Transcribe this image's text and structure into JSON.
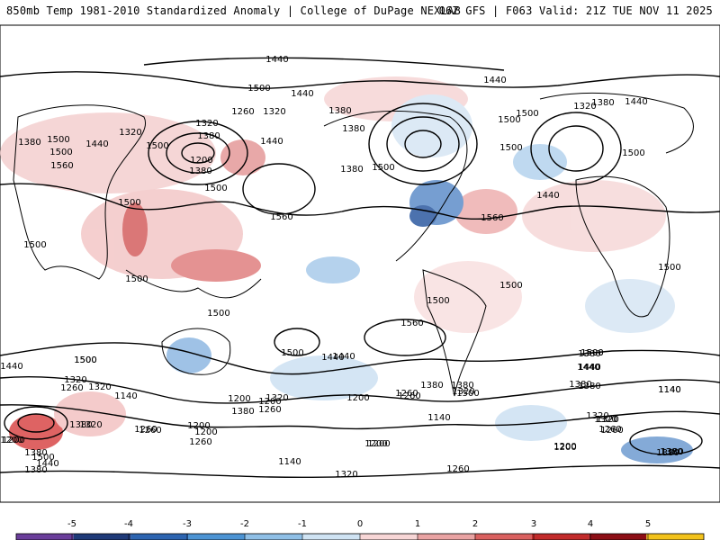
{
  "header": {
    "left": "850mb Temp 1981-2010 Standardized Anomaly | College of DuPage NEXLAB",
    "right": "06Z GFS | F063 Valid: 21Z TUE NOV 11 2025"
  },
  "colorbar": {
    "ticks": [
      "-5",
      "-4",
      "-3",
      "-2",
      "-1",
      "0",
      "1",
      "2",
      "3",
      "4",
      "5"
    ],
    "colors": [
      "#6a3d9a",
      "#1f3a78",
      "#2c64b0",
      "#4c93d3",
      "#8fbfe6",
      "#cfe3f3",
      "#f7d6d6",
      "#e9a3a3",
      "#d9605f",
      "#c22b2b",
      "#8c0e15",
      "#f2c21b"
    ]
  },
  "contour_labels": [
    "1440",
    "1500",
    "1440",
    "1440",
    "1320",
    "1380",
    "1260",
    "1320",
    "1380",
    "1500",
    "1500",
    "1440",
    "1500",
    "1500",
    "1380",
    "1320",
    "1380",
    "1560",
    "1500",
    "1440",
    "1200",
    "1380",
    "1380",
    "1320",
    "1440",
    "1500",
    "1500",
    "1500",
    "1440",
    "1380",
    "1500",
    "1560",
    "1560",
    "1500",
    "1500",
    "1500",
    "1500",
    "1500",
    "1500",
    "1500",
    "1560",
    "1500",
    "1440",
    "1500",
    "1440",
    "1380",
    "1320",
    "1320",
    "1200",
    "1260",
    "1380",
    "1320",
    "1260",
    "1200",
    "1140",
    "1200",
    "1200",
    "1260",
    "1200",
    "1260",
    "1140",
    "1500",
    "1440",
    "1380",
    "1320",
    "1200",
    "1380",
    "1140",
    "1320",
    "1500",
    "1440",
    "1380",
    "1320",
    "1260",
    "1140",
    "1260",
    "1200",
    "1200",
    "1380",
    "1380",
    "1200",
    "1500",
    "1440",
    "1380",
    "1320",
    "1260",
    "1260",
    "1320",
    "1380",
    "1500",
    "1440",
    "1380",
    "1320",
    "1260",
    "1200",
    "1140",
    "1320",
    "1260",
    "1200",
    "1380",
    "1500",
    "1440",
    "1380"
  ]
}
